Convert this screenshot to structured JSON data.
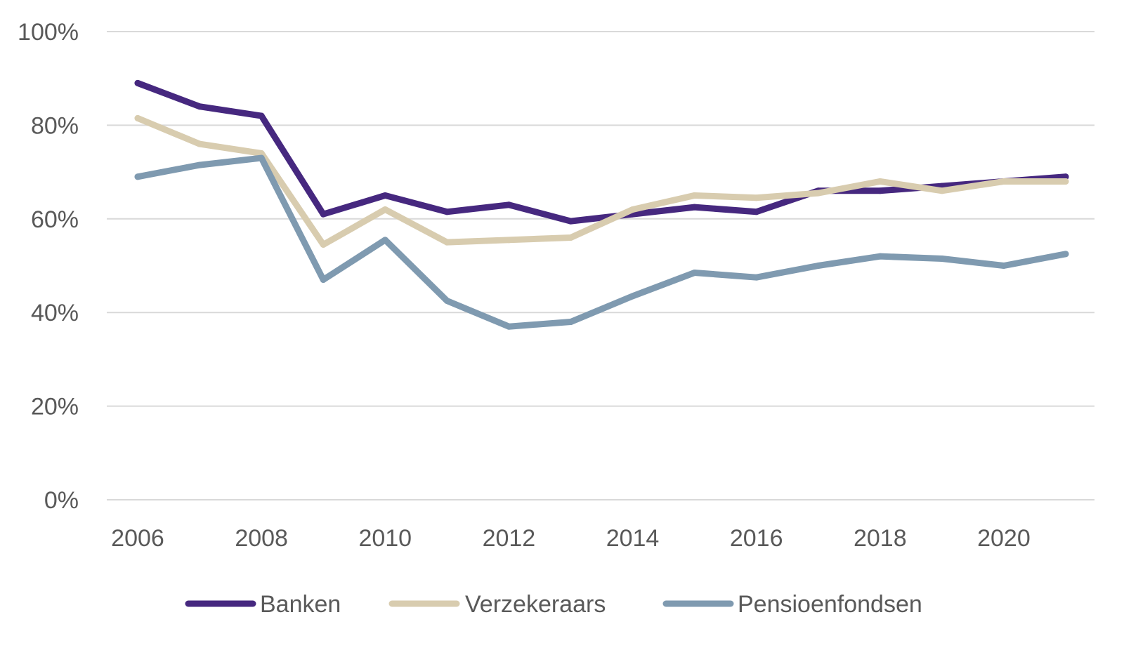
{
  "chart_data": {
    "type": "line",
    "x": [
      2006,
      2007,
      2008,
      2009,
      2010,
      2011,
      2012,
      2013,
      2014,
      2015,
      2016,
      2017,
      2018,
      2019,
      2020,
      2021
    ],
    "x_tick_labels": [
      "2006",
      "2008",
      "2010",
      "2012",
      "2014",
      "2016",
      "2018",
      "2020"
    ],
    "y_tick_labels": [
      "0%",
      "20%",
      "40%",
      "60%",
      "80%",
      "100%"
    ],
    "ylim": [
      0,
      100
    ],
    "grid": true,
    "legend_position": "bottom",
    "series": [
      {
        "name": "Banken",
        "color": "#46287f",
        "values": [
          89,
          84,
          82,
          61,
          65,
          61.5,
          63,
          59.5,
          61,
          62.5,
          61.5,
          66,
          66,
          67,
          68,
          69
        ]
      },
      {
        "name": "Verzekeraars",
        "color": "#d8ccaf",
        "values": [
          81.5,
          76,
          74,
          54.5,
          62,
          55,
          55.5,
          56,
          62,
          65,
          64.5,
          65.5,
          68,
          66,
          68,
          68
        ]
      },
      {
        "name": "Pensioenfondsen",
        "color": "#7f9ab0",
        "values": [
          69,
          71.5,
          73,
          47,
          55.5,
          42.5,
          37,
          38,
          43.5,
          48.5,
          47.5,
          50,
          52,
          51.5,
          50,
          52.5
        ]
      }
    ]
  }
}
